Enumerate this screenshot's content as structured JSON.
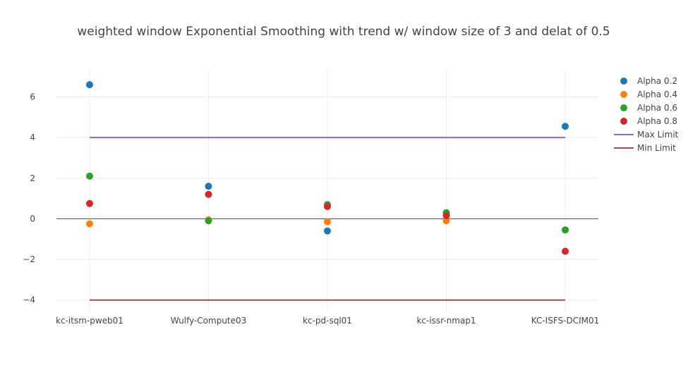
{
  "chart_data": {
    "type": "scatter",
    "title": "weighted window Exponential Smoothing with trend w/ window size of 3 and delat of 0.5",
    "xlabel": "",
    "ylabel": "",
    "categories": [
      "kc-itsm-pweb01",
      "Wulfy-Compute03",
      "kc-pd-sql01",
      "kc-issr-nmap1",
      "KC-ISFS-DCIM01"
    ],
    "ylim": [
      -4.6,
      7.3
    ],
    "yticks": [
      -4,
      -2,
      0,
      2,
      4,
      6
    ],
    "ytick_labels": [
      "−4",
      "−2",
      "0",
      "2",
      "4",
      "6"
    ],
    "grid": true,
    "legend_position": "top-right",
    "series": [
      {
        "name": "Alpha 0.2",
        "color": "#1f77b4",
        "mode": "markers",
        "values": [
          6.6,
          1.6,
          -0.6,
          0.2,
          4.55
        ]
      },
      {
        "name": "Alpha 0.4",
        "color": "#ff7f0e",
        "mode": "markers",
        "values": [
          -0.25,
          -0.05,
          -0.15,
          -0.1,
          -0.55
        ]
      },
      {
        "name": "Alpha 0.6",
        "color": "#2ca02c",
        "mode": "markers",
        "values": [
          2.1,
          -0.1,
          0.7,
          0.3,
          -0.55
        ]
      },
      {
        "name": "Alpha 0.8",
        "color": "#d62728",
        "mode": "markers",
        "values": [
          0.75,
          1.2,
          0.6,
          0.15,
          -1.6
        ]
      },
      {
        "name": "Max Limit",
        "color": "#9467bd",
        "mode": "line",
        "values": [
          4,
          4,
          4,
          4,
          4
        ]
      },
      {
        "name": "Min Limit",
        "color": "#8c564b",
        "mode": "line",
        "values": [
          -4,
          -4,
          -4,
          -4,
          -4
        ]
      }
    ]
  }
}
